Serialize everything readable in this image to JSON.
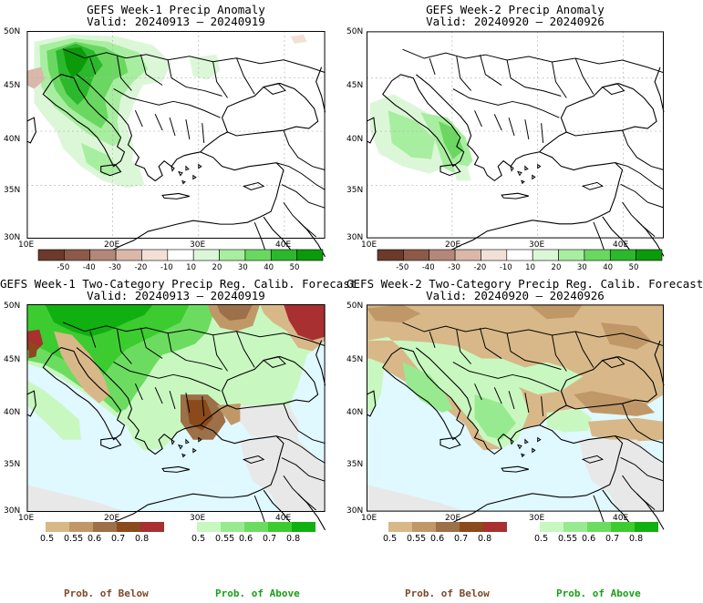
{
  "panels": [
    {
      "title": "GEFS Week-1 Precip Anomaly",
      "valid": "Valid: 20240913 – 20240919"
    },
    {
      "title": "GEFS Week-2 Precip Anomaly",
      "valid": "Valid: 20240920 – 20240926"
    },
    {
      "title": "GEFS Week-1 Two-Category Precip Reg. Calib. Forecast",
      "valid": "Valid: 20240913 – 20240919"
    },
    {
      "title": "GEFS Week-2 Two-Category Precip Reg. Calib. Forecast",
      "valid": "Valid: 20240920 – 20240926"
    }
  ],
  "axes": {
    "lat_labels": [
      "50N",
      "45N",
      "40N",
      "35N",
      "30N"
    ],
    "lon_labels": [
      "10E",
      "20E",
      "30E",
      "40E"
    ]
  },
  "anomaly_colorbar": {
    "labels": [
      "-50",
      "-40",
      "-30",
      "-20",
      "-10",
      "10",
      "20",
      "30",
      "40",
      "50"
    ],
    "colors": [
      "#6b3a2a",
      "#8c5a48",
      "#b38878",
      "#d9b8aa",
      "#f2e0d6",
      "#ffffff",
      "#dcf7d8",
      "#a8eea0",
      "#6ad860",
      "#2cb82c",
      "#0a9a0a"
    ]
  },
  "prob_colorbar": {
    "below_labels": [
      "0.5",
      "0.55",
      "0.6",
      "0.7",
      "0.8"
    ],
    "below_colors": [
      "#d8b888",
      "#c09868",
      "#9c7048",
      "#8a4a1c",
      "#a83030"
    ],
    "above_labels": [
      "0.5",
      "0.55",
      "0.6",
      "0.7",
      "0.8"
    ],
    "above_colors": [
      "#c8f8c0",
      "#98ea90",
      "#6cdc60",
      "#3ccc30",
      "#10b010"
    ]
  },
  "footer": [
    {
      "label": "Prob. of Below",
      "color": "#7a4a2a"
    },
    {
      "label": "Prob. of Above",
      "color": "#18a018"
    },
    {
      "label": "Prob. of Below",
      "color": "#7a4a2a"
    },
    {
      "label": "Prob. of Above",
      "color": "#18a018"
    }
  ],
  "colors": {
    "ocean": "#e0f8ff",
    "near_normal": "#e8e8e8"
  }
}
